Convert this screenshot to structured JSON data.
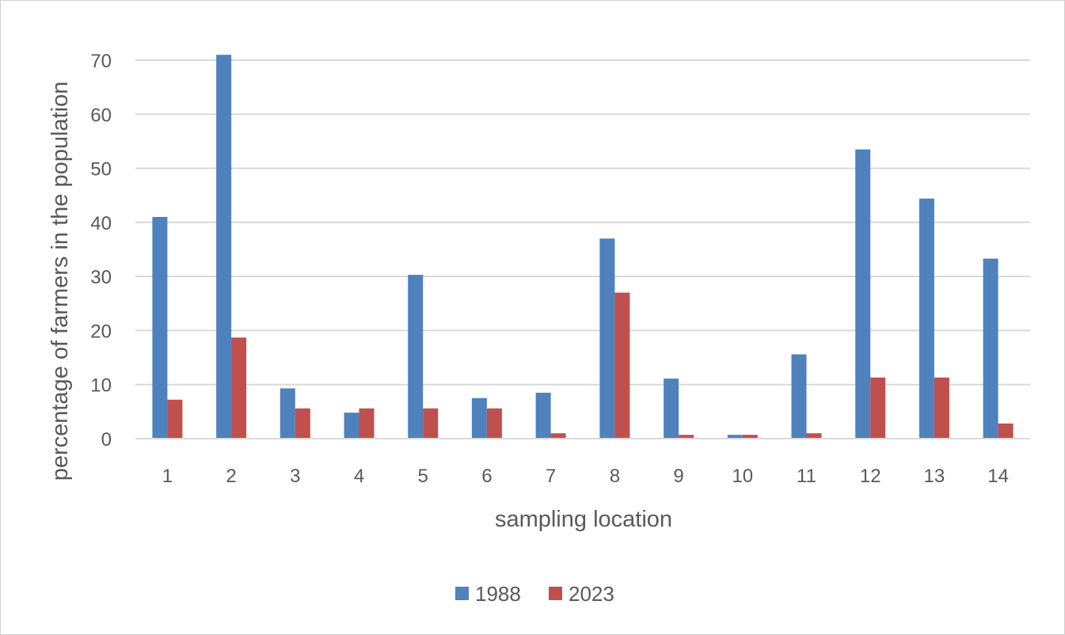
{
  "chart_data": {
    "type": "bar",
    "title": "",
    "xlabel": "sampling location",
    "ylabel": "percentage of farmers in the population",
    "categories": [
      "1",
      "2",
      "3",
      "4",
      "5",
      "6",
      "7",
      "8",
      "9",
      "10",
      "11",
      "12",
      "13",
      "14"
    ],
    "series": [
      {
        "name": "1988",
        "color": "#4F81BD",
        "values": [
          41.0,
          71.0,
          9.3,
          4.8,
          30.3,
          7.5,
          8.5,
          37.0,
          11.1,
          0.7,
          15.6,
          53.5,
          44.4,
          33.3
        ]
      },
      {
        "name": "2023",
        "color": "#C0504D",
        "values": [
          7.2,
          18.7,
          5.6,
          5.6,
          5.6,
          5.6,
          1.0,
          27.0,
          0.7,
          0.7,
          1.0,
          11.3,
          11.3,
          2.8
        ]
      }
    ],
    "ylim": [
      0,
      70
    ],
    "yticks": [
      0,
      10,
      20,
      30,
      40,
      50,
      60,
      70
    ],
    "grid": true,
    "gridline_color": "#D9D9D9",
    "legend_position": "bottom"
  }
}
